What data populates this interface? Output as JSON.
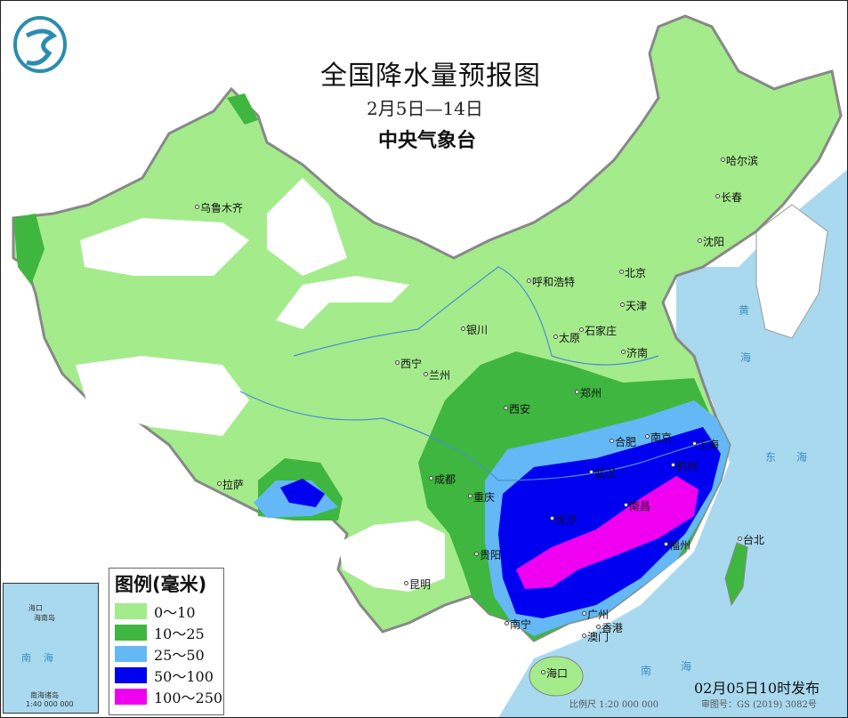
{
  "title": "全国降水量预报图",
  "subtitle": "2月5日—14日",
  "organization": "中央气象台",
  "issued": "02月05日10时发布",
  "scale": "比例尺 1:20 000 000",
  "review_number": "审图号：GS (2019) 3082号",
  "legend": {
    "title": "图例(毫米)",
    "items": [
      {
        "label": "0～10",
        "color": "#a4eb8c"
      },
      {
        "label": "10～25",
        "color": "#3fb63f"
      },
      {
        "label": "25～50",
        "color": "#63b8f5"
      },
      {
        "label": "50～100",
        "color": "#0000f0"
      },
      {
        "label": "100～250",
        "color": "#f000f0"
      }
    ]
  },
  "colors": {
    "sea": "#a9d9ef",
    "land_outside": "#ffffff",
    "no_rain": "#ffffff"
  },
  "cities": [
    "乌鲁木齐",
    "哈尔滨",
    "长春",
    "沈阳",
    "呼和浩特",
    "北京",
    "天津",
    "银川",
    "石家庄",
    "太原",
    "济南",
    "西宁",
    "兰州",
    "西安",
    "郑州",
    "合肥",
    "南京",
    "上海",
    "杭州",
    "成都",
    "重庆",
    "武汉",
    "南昌",
    "长沙",
    "拉萨",
    "贵阳",
    "福州",
    "台北",
    "昆明",
    "南宁",
    "广州",
    "香港",
    "澳门",
    "海口"
  ],
  "sea_labels": [
    "黄",
    "海",
    "东",
    "海",
    "南",
    "海"
  ],
  "inset": {
    "labels": [
      "海口",
      "海南岛",
      "南",
      "海",
      "南海诸岛"
    ],
    "scale": "1:40 000 000"
  },
  "logo": "气"
}
